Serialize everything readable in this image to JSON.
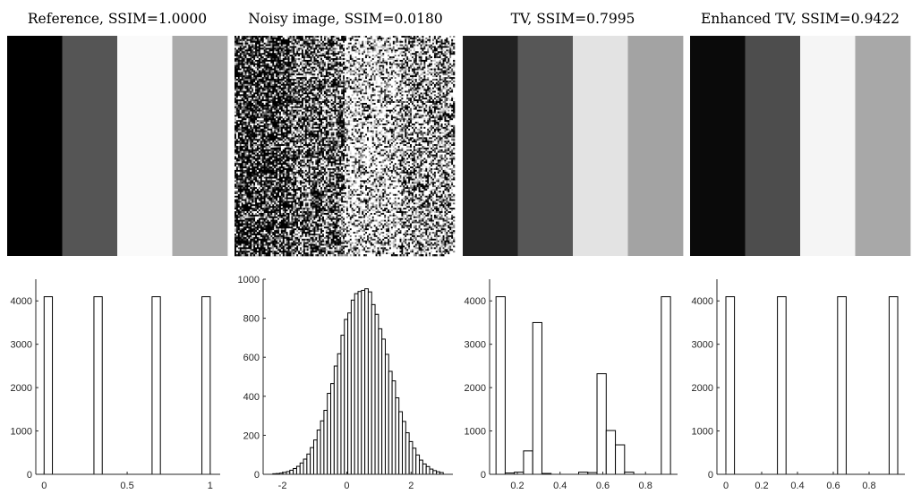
{
  "chart_data": [
    {
      "panel": "image",
      "title": "Reference, SSIM=1.0000",
      "stripes": [
        {
          "gray": 0.0,
          "width": 1
        },
        {
          "gray": 0.333,
          "width": 1
        },
        {
          "gray": 0.98,
          "width": 1
        },
        {
          "gray": 0.667,
          "width": 1
        }
      ]
    },
    {
      "panel": "image",
      "title": "Noisy image, SSIM=0.0180",
      "noise": true,
      "noise_columns": 128,
      "noise_rows": 128,
      "noise_std": 0.8,
      "stripes": [
        {
          "gray": 0.0,
          "width": 1
        },
        {
          "gray": 0.333,
          "width": 1
        },
        {
          "gray": 1.0,
          "width": 1
        },
        {
          "gray": 0.667,
          "width": 1
        }
      ]
    },
    {
      "panel": "image",
      "title": "TV, SSIM=0.7995",
      "stripes": [
        {
          "gray": 0.13,
          "width": 1
        },
        {
          "gray": 0.34,
          "width": 1
        },
        {
          "gray": 0.89,
          "width": 1
        },
        {
          "gray": 0.64,
          "width": 1
        }
      ]
    },
    {
      "panel": "image",
      "title": "Enhanced TV, SSIM=0.9422",
      "stripes": [
        {
          "gray": 0.04,
          "width": 1
        },
        {
          "gray": 0.3,
          "width": 1
        },
        {
          "gray": 0.96,
          "width": 1
        },
        {
          "gray": 0.66,
          "width": 1
        }
      ]
    },
    {
      "panel": "histogram",
      "type": "bar",
      "xlim": [
        -0.05,
        1.06
      ],
      "ylim": [
        0,
        4500
      ],
      "xticks": [
        0,
        0.5,
        1
      ],
      "xtick_labels": [
        "0",
        "0.5",
        "1"
      ],
      "yticks": [
        0,
        1000,
        2000,
        3000,
        4000
      ],
      "ytick_labels": [
        "0",
        "1000",
        "2000",
        "3000",
        "4000"
      ],
      "bin_edges": [
        0.0,
        0.05,
        0.1,
        0.15,
        0.2,
        0.25,
        0.3,
        0.35,
        0.4,
        0.45,
        0.5,
        0.55,
        0.6,
        0.65,
        0.7,
        0.75,
        0.8,
        0.85,
        0.9,
        0.95,
        1.0
      ],
      "values": [
        4096,
        0,
        0,
        0,
        0,
        0,
        4096,
        0,
        0,
        0,
        0,
        0,
        0,
        4096,
        0,
        0,
        0,
        0,
        0,
        4096
      ]
    },
    {
      "panel": "histogram",
      "type": "bar",
      "xlim": [
        -2.6,
        3.3
      ],
      "ylim": [
        0,
        1000
      ],
      "xticks": [
        -2,
        0,
        2
      ],
      "xtick_labels": [
        "-2",
        "0",
        "2"
      ],
      "yticks": [
        0,
        200,
        400,
        600,
        800,
        1000
      ],
      "ytick_labels": [
        "0",
        "200",
        "400",
        "600",
        "800",
        "1000"
      ],
      "gaussian": {
        "mean": 0.5,
        "std": 0.8,
        "peak": 960,
        "bin_start": -2.3,
        "bin_end": 3.0,
        "bins": 50
      }
    },
    {
      "panel": "histogram",
      "type": "bar",
      "xlim": [
        0.07,
        0.95
      ],
      "ylim": [
        0,
        4500
      ],
      "xticks": [
        0.2,
        0.4,
        0.6,
        0.8
      ],
      "xtick_labels": [
        "0.2",
        "0.4",
        "0.6",
        "0.8"
      ],
      "yticks": [
        0,
        1000,
        2000,
        3000,
        4000
      ],
      "ytick_labels": [
        "0",
        "1000",
        "2000",
        "3000",
        "4000"
      ],
      "bin_edges": [
        0.1,
        0.143,
        0.186,
        0.229,
        0.272,
        0.315,
        0.358,
        0.401,
        0.444,
        0.487,
        0.53,
        0.573,
        0.616,
        0.659,
        0.702,
        0.745,
        0.788,
        0.831,
        0.874,
        0.917
      ],
      "values": [
        4096,
        30,
        50,
        540,
        3500,
        20,
        0,
        0,
        0,
        50,
        40,
        2320,
        1010,
        680,
        50,
        0,
        0,
        0,
        4096
      ]
    },
    {
      "panel": "histogram",
      "type": "bar",
      "xlim": [
        -0.05,
        1.0
      ],
      "ylim": [
        0,
        4500
      ],
      "xticks": [
        0,
        0.2,
        0.4,
        0.6,
        0.8
      ],
      "xtick_labels": [
        "0",
        "0.2",
        "0.4",
        "0.6",
        "0.8"
      ],
      "yticks": [
        0,
        1000,
        2000,
        3000,
        4000
      ],
      "ytick_labels": [
        "0",
        "1000",
        "2000",
        "3000",
        "4000"
      ],
      "bin_edges": [
        0.0,
        0.048,
        0.096,
        0.144,
        0.192,
        0.24,
        0.288,
        0.336,
        0.384,
        0.432,
        0.48,
        0.528,
        0.576,
        0.624,
        0.672,
        0.72,
        0.768,
        0.816,
        0.864,
        0.912,
        0.96
      ],
      "values": [
        4096,
        0,
        0,
        0,
        0,
        0,
        4096,
        0,
        0,
        0,
        0,
        0,
        0,
        4096,
        0,
        0,
        0,
        0,
        0,
        4096
      ]
    }
  ]
}
